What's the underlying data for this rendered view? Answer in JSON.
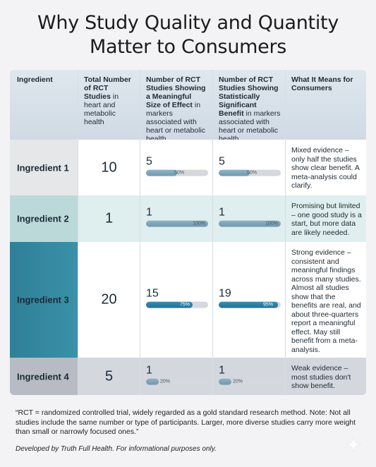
{
  "title_line1": "Why Study Quality and Quantity",
  "title_line2": "Matter to Consumers",
  "headers": {
    "ingredient": "Ingredient",
    "total_bold": "Total Number of RCT Studies",
    "total_rest": " in heart and metabolic health",
    "meaningful_bold": "Number of RCT Studies Showing a Meaningful Size of Effect",
    "meaningful_rest": " in markers associated with heart or metabolic health",
    "significant_bold": "Number of RCT Studies Showing Statistically Significant Benefit",
    "significant_rest": " in markers associated with heart or metabolic health",
    "meaning": "What It Means for Consumers"
  },
  "rows": [
    {
      "ingredient": "Ingredient 1",
      "total": "10",
      "meaningful": "5",
      "meaningful_pct": "50%",
      "meaningful_fraction": 0.5,
      "significant": "5",
      "significant_pct": "50%",
      "significant_fraction": 0.5,
      "meaning": "Mixed evidence – only half the studies show clear benefit. A meta-analysis could clarify."
    },
    {
      "ingredient": "Ingredient 2",
      "total": "1",
      "meaningful": "1",
      "meaningful_pct": "100%",
      "meaningful_fraction": 1.0,
      "significant": "1",
      "significant_pct": "100%",
      "significant_fraction": 1.0,
      "meaning": "Promising but limited – one good study is a start, but more data are likely needed."
    },
    {
      "ingredient": "Ingredient 3",
      "total": "20",
      "meaningful": "15",
      "meaningful_pct": "75%",
      "meaningful_fraction": 0.75,
      "significant": "19",
      "significant_pct": "95%",
      "significant_fraction": 0.95,
      "meaning": "Strong evidence – consistent and meaningful findings across many studies. Almost all studies show that the benefits are real, and about three-quarters report a meaningful effect. May still benefit from a meta-analysis."
    },
    {
      "ingredient": "Ingredient 4",
      "total": "5",
      "meaningful": "1",
      "meaningful_pct": "20%",
      "meaningful_fraction": 0.2,
      "significant": "1",
      "significant_pct": "20%",
      "significant_fraction": 0.2,
      "meaning": "Weak evidence – most studies don't show benefit."
    }
  ],
  "note": "“RCT = randomized controlled trial, widely regarded as a gold standard research method. Note: Not all studies include the same number or type of participants. Larger, more diverse studies carry more weight than small or narrowly focused ones.”",
  "credit": "Developed by Truth Full Health. For informational purposes only.",
  "icons": {
    "sparkle": "sparkle-icon"
  }
}
